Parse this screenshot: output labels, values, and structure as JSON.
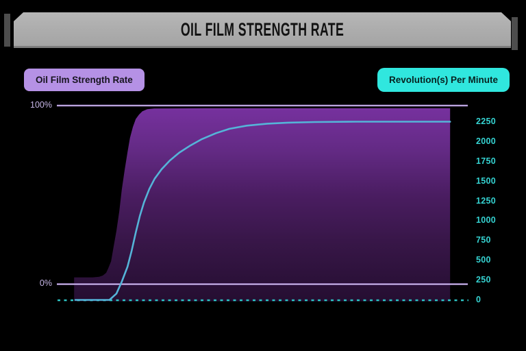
{
  "header": {
    "title": "OIL FILM STRENGTH RATE"
  },
  "legend": {
    "left_badge": {
      "label": "Oil Film Strength Rate"
    },
    "right_badge": {
      "label": "Revolution(s) Per Minute"
    }
  },
  "colors": {
    "background": "#000000",
    "header_plate": "#a9a9a9",
    "header_text": "#121212",
    "badge_purple": "#b591e5",
    "badge_cyan": "#30e7de",
    "area_top": "#76319e",
    "area_bottom": "#250e31",
    "rpm_line": "#55b4d8",
    "gridline_purple": "#9b7bc8",
    "dashed_baseline": "#2cc2c2",
    "right_axis_text": "#35d3d2",
    "left_axis_text": "#c6b6e6"
  },
  "chart_data": {
    "type": "area",
    "title": "Oil Film Strength Rate vs Revolution(s) Per Minute",
    "xlabel": "",
    "x_note": "no x-axis tick labels shown; x given as 0-1 fraction of plot width",
    "left_axis": {
      "label": "Oil Film Strength Rate",
      "unit": "%",
      "ticks": [
        "100%",
        "0%"
      ],
      "range": [
        0,
        100
      ]
    },
    "right_axis": {
      "label": "Revolution(s) Per Minute",
      "unit": "RPM",
      "ticks": [
        "2250",
        "2000",
        "1750",
        "1500",
        "1250",
        "1000",
        "750",
        "500",
        "250",
        "0"
      ],
      "range": [
        0,
        2250
      ]
    },
    "grid": "horizontal gridlines at 0% and 100% only; dashed teal baseline at 0 RPM",
    "legend_position": "top outside plot (purple chip left, cyan chip right)",
    "series": [
      {
        "name": "Oil Film Strength Rate",
        "type": "area",
        "axis": "left",
        "unit": "%",
        "shape": "flat ~4% then steep sigmoid rise to ~98.5% plateau",
        "points": [
          [
            0.042,
            4
          ],
          [
            0.062,
            4
          ],
          [
            0.087,
            4
          ],
          [
            0.103,
            4.3
          ],
          [
            0.112,
            5
          ],
          [
            0.12,
            6.5
          ],
          [
            0.125,
            9
          ],
          [
            0.132,
            13
          ],
          [
            0.138,
            21
          ],
          [
            0.145,
            30
          ],
          [
            0.152,
            41
          ],
          [
            0.158,
            53
          ],
          [
            0.165,
            64
          ],
          [
            0.172,
            74
          ],
          [
            0.178,
            82
          ],
          [
            0.185,
            88
          ],
          [
            0.192,
            92.5
          ],
          [
            0.2,
            95
          ],
          [
            0.208,
            96.8
          ],
          [
            0.22,
            98
          ],
          [
            0.237,
            98.4
          ],
          [
            0.362,
            98.5
          ],
          [
            0.957,
            98.5
          ]
        ]
      },
      {
        "name": "Revolution(s) Per Minute",
        "type": "line",
        "axis": "right",
        "unit": "RPM",
        "shape": "flat at 0 then gradual sigmoid rise saturating at 2250",
        "points": [
          [
            0.045,
            0
          ],
          [
            0.095,
            0
          ],
          [
            0.128,
            0
          ],
          [
            0.145,
            80
          ],
          [
            0.158,
            230
          ],
          [
            0.172,
            420
          ],
          [
            0.182,
            620
          ],
          [
            0.192,
            850
          ],
          [
            0.202,
            1060
          ],
          [
            0.212,
            1230
          ],
          [
            0.225,
            1400
          ],
          [
            0.238,
            1530
          ],
          [
            0.255,
            1650
          ],
          [
            0.275,
            1760
          ],
          [
            0.298,
            1860
          ],
          [
            0.325,
            1950
          ],
          [
            0.353,
            2030
          ],
          [
            0.387,
            2105
          ],
          [
            0.42,
            2160
          ],
          [
            0.462,
            2200
          ],
          [
            0.512,
            2225
          ],
          [
            0.562,
            2238
          ],
          [
            0.628,
            2246
          ],
          [
            0.728,
            2250
          ],
          [
            0.957,
            2250
          ]
        ]
      }
    ]
  }
}
